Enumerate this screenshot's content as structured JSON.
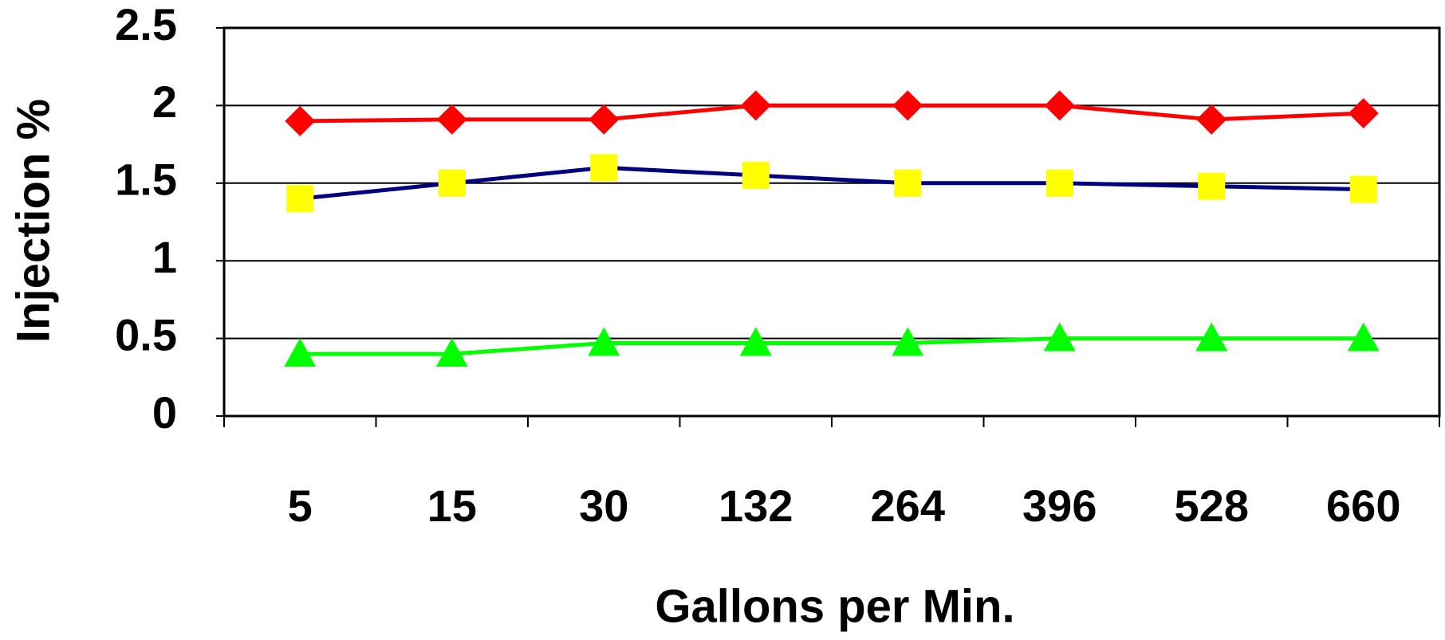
{
  "chart_data": {
    "type": "line",
    "x_label": "Gallons per Min.",
    "y_label": "Injection %",
    "categories": [
      "5",
      "15",
      "30",
      "132",
      "264",
      "396",
      "528",
      "660"
    ],
    "series": [
      {
        "color": "#ff0000",
        "marker": "diamond",
        "marker_color": "#ff0000",
        "values": [
          1.9,
          1.91,
          1.91,
          2.0,
          2.0,
          2.0,
          1.91,
          1.95
        ]
      },
      {
        "color": "#000080",
        "marker": "square",
        "marker_color": "#ffff00",
        "values": [
          1.4,
          1.5,
          1.6,
          1.55,
          1.5,
          1.5,
          1.48,
          1.46
        ]
      },
      {
        "color": "#00ff00",
        "marker": "triangle",
        "marker_color": "#00ff00",
        "values": [
          0.4,
          0.4,
          0.47,
          0.47,
          0.47,
          0.5,
          0.5,
          0.5
        ]
      }
    ],
    "ylim": [
      0,
      2.5
    ],
    "yticks": [
      0,
      0.5,
      1,
      1.5,
      2,
      2.5
    ],
    "grid": true
  }
}
